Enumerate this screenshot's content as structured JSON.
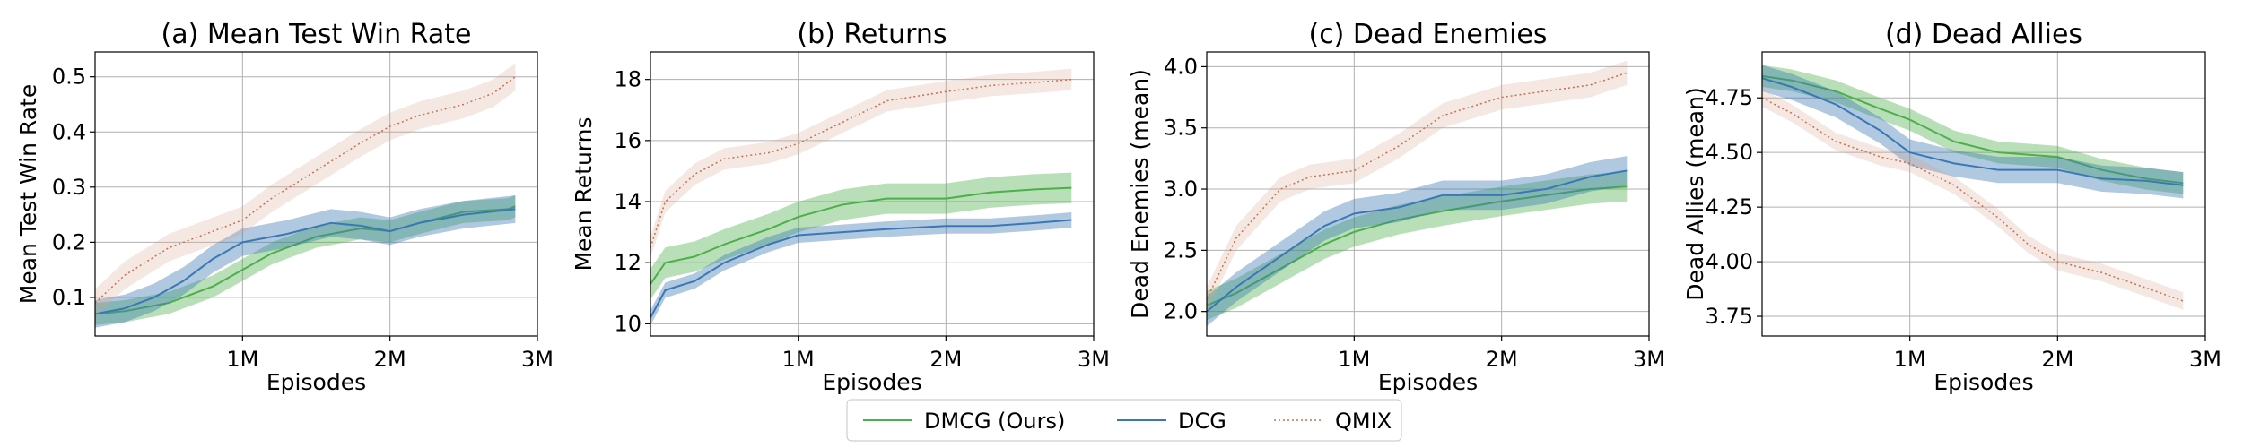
{
  "colors": {
    "dmcg": "#4daf4a",
    "dcg": "#3a78b4",
    "qmix": "#d9a08a"
  },
  "legend": {
    "placement": "bottom-center",
    "items": [
      {
        "key": "dmcg",
        "label": "DMCG (Ours)"
      },
      {
        "key": "dcg",
        "label": "DCG"
      },
      {
        "key": "qmix",
        "label": "QMIX"
      }
    ]
  },
  "chart_data": [
    {
      "type": "line",
      "title": "(a) Mean Test Win Rate",
      "xlabel": "Episodes",
      "ylabel": "Mean Test Win Rate",
      "xlim": [
        0,
        3000000
      ],
      "ylim": [
        0.03,
        0.545
      ],
      "xticks": [
        1000000,
        2000000,
        3000000
      ],
      "xticklabels": [
        "1M",
        "2M",
        "3M"
      ],
      "yticks": [
        0.1,
        0.2,
        0.3,
        0.4,
        0.5
      ],
      "yticklabels": [
        "0.1",
        "0.2",
        "0.3",
        "0.4",
        "0.5"
      ],
      "grid": true,
      "series": [
        {
          "key": "dmcg",
          "name": "DMCG (Ours)",
          "x": [
            0,
            200000,
            500000,
            800000,
            1000000,
            1200000,
            1500000,
            1800000,
            2000000,
            2200000,
            2500000,
            2800000,
            2850000
          ],
          "y": [
            0.07,
            0.075,
            0.09,
            0.12,
            0.15,
            0.18,
            0.21,
            0.225,
            0.22,
            0.235,
            0.255,
            0.26,
            0.265
          ],
          "band": 0.02
        },
        {
          "key": "dcg",
          "name": "DCG",
          "x": [
            0,
            200000,
            400000,
            600000,
            800000,
            1000000,
            1300000,
            1600000,
            1800000,
            2000000,
            2200000,
            2500000,
            2850000
          ],
          "y": [
            0.07,
            0.08,
            0.1,
            0.13,
            0.17,
            0.2,
            0.215,
            0.235,
            0.23,
            0.22,
            0.235,
            0.25,
            0.26
          ],
          "band": 0.025
        },
        {
          "key": "qmix",
          "name": "QMIX",
          "x": [
            0,
            200000,
            500000,
            800000,
            1000000,
            1200000,
            1500000,
            1800000,
            2000000,
            2200000,
            2500000,
            2700000,
            2850000
          ],
          "y": [
            0.09,
            0.14,
            0.19,
            0.22,
            0.24,
            0.28,
            0.33,
            0.38,
            0.41,
            0.43,
            0.45,
            0.47,
            0.5
          ],
          "band": 0.025
        }
      ]
    },
    {
      "type": "line",
      "title": "(b) Returns",
      "xlabel": "Episodes",
      "ylabel": "Mean Returns",
      "xlim": [
        0,
        3000000
      ],
      "ylim": [
        9.6,
        18.9
      ],
      "xticks": [
        1000000,
        2000000,
        3000000
      ],
      "xticklabels": [
        "1M",
        "2M",
        "3M"
      ],
      "yticks": [
        10,
        12,
        14,
        16,
        18
      ],
      "yticklabels": [
        "10",
        "12",
        "14",
        "16",
        "18"
      ],
      "grid": true,
      "series": [
        {
          "key": "dmcg",
          "name": "DMCG (Ours)",
          "x": [
            0,
            100000,
            300000,
            500000,
            800000,
            1000000,
            1300000,
            1600000,
            2000000,
            2300000,
            2600000,
            2850000
          ],
          "y": [
            11.3,
            12.0,
            12.2,
            12.6,
            13.1,
            13.5,
            13.9,
            14.1,
            14.1,
            14.3,
            14.4,
            14.45
          ],
          "band": 0.5
        },
        {
          "key": "dcg",
          "name": "DCG",
          "x": [
            0,
            100000,
            300000,
            500000,
            800000,
            1000000,
            1300000,
            1600000,
            2000000,
            2300000,
            2600000,
            2850000
          ],
          "y": [
            10.2,
            11.1,
            11.4,
            12.0,
            12.6,
            12.9,
            13.0,
            13.1,
            13.2,
            13.2,
            13.3,
            13.4
          ],
          "band": 0.25
        },
        {
          "key": "qmix",
          "name": "QMIX",
          "x": [
            0,
            100000,
            300000,
            500000,
            800000,
            1000000,
            1300000,
            1600000,
            2000000,
            2300000,
            2600000,
            2850000
          ],
          "y": [
            12.5,
            14.0,
            14.9,
            15.4,
            15.6,
            15.9,
            16.6,
            17.3,
            17.6,
            17.8,
            17.9,
            18.0
          ],
          "band": 0.35
        }
      ]
    },
    {
      "type": "line",
      "title": "(c) Dead Enemies",
      "xlabel": "Episodes",
      "ylabel": "Dead Enemies (mean)",
      "xlim": [
        0,
        3000000
      ],
      "ylim": [
        1.8,
        4.12
      ],
      "xticks": [
        1000000,
        2000000,
        3000000
      ],
      "xticklabels": [
        "1M",
        "2M",
        "3M"
      ],
      "yticks": [
        2.0,
        2.5,
        3.0,
        3.5,
        4.0
      ],
      "yticklabels": [
        "2.0",
        "2.5",
        "3.0",
        "3.5",
        "4.0"
      ],
      "grid": true,
      "series": [
        {
          "key": "dmcg",
          "name": "DMCG (Ours)",
          "x": [
            0,
            200000,
            500000,
            800000,
            1000000,
            1300000,
            1600000,
            2000000,
            2300000,
            2600000,
            2850000
          ],
          "y": [
            2.05,
            2.15,
            2.35,
            2.55,
            2.65,
            2.75,
            2.82,
            2.9,
            2.95,
            3.0,
            3.02
          ],
          "band": 0.12
        },
        {
          "key": "dcg",
          "name": "DCG",
          "x": [
            0,
            200000,
            500000,
            800000,
            1000000,
            1300000,
            1600000,
            2000000,
            2300000,
            2600000,
            2850000
          ],
          "y": [
            2.0,
            2.2,
            2.45,
            2.7,
            2.8,
            2.85,
            2.95,
            2.95,
            3.0,
            3.1,
            3.15
          ],
          "band": 0.12
        },
        {
          "key": "qmix",
          "name": "QMIX",
          "x": [
            0,
            200000,
            500000,
            700000,
            1000000,
            1300000,
            1600000,
            2000000,
            2300000,
            2600000,
            2850000
          ],
          "y": [
            2.1,
            2.6,
            3.0,
            3.1,
            3.15,
            3.35,
            3.6,
            3.75,
            3.8,
            3.85,
            3.95
          ],
          "band": 0.1
        }
      ]
    },
    {
      "type": "line",
      "title": "(d) Dead Allies",
      "xlabel": "Episodes",
      "ylabel": "Dead Allies (mean)",
      "xlim": [
        0,
        3000000
      ],
      "ylim": [
        3.66,
        4.96
      ],
      "xticks": [
        1000000,
        2000000,
        3000000
      ],
      "xticklabels": [
        "1M",
        "2M",
        "3M"
      ],
      "yticks": [
        3.75,
        4.0,
        4.25,
        4.5,
        4.75
      ],
      "yticklabels": [
        "3.75",
        "4.00",
        "4.25",
        "4.50",
        "4.75"
      ],
      "grid": true,
      "series": [
        {
          "key": "dmcg",
          "name": "DMCG (Ours)",
          "x": [
            0,
            200000,
            500000,
            800000,
            1000000,
            1300000,
            1600000,
            2000000,
            2300000,
            2600000,
            2850000
          ],
          "y": [
            4.85,
            4.83,
            4.78,
            4.7,
            4.65,
            4.55,
            4.5,
            4.48,
            4.42,
            4.38,
            4.36
          ],
          "band": 0.05
        },
        {
          "key": "dcg",
          "name": "DCG",
          "x": [
            0,
            200000,
            500000,
            800000,
            1000000,
            1300000,
            1600000,
            2000000,
            2300000,
            2600000,
            2850000
          ],
          "y": [
            4.84,
            4.8,
            4.72,
            4.6,
            4.5,
            4.45,
            4.42,
            4.42,
            4.38,
            4.37,
            4.35
          ],
          "band": 0.06
        },
        {
          "key": "qmix",
          "name": "QMIX",
          "x": [
            0,
            200000,
            500000,
            800000,
            1000000,
            1300000,
            1600000,
            1800000,
            2000000,
            2300000,
            2600000,
            2850000
          ],
          "y": [
            4.75,
            4.68,
            4.55,
            4.48,
            4.45,
            4.35,
            4.2,
            4.08,
            4.0,
            3.95,
            3.88,
            3.82
          ],
          "band": 0.04
        }
      ]
    }
  ]
}
